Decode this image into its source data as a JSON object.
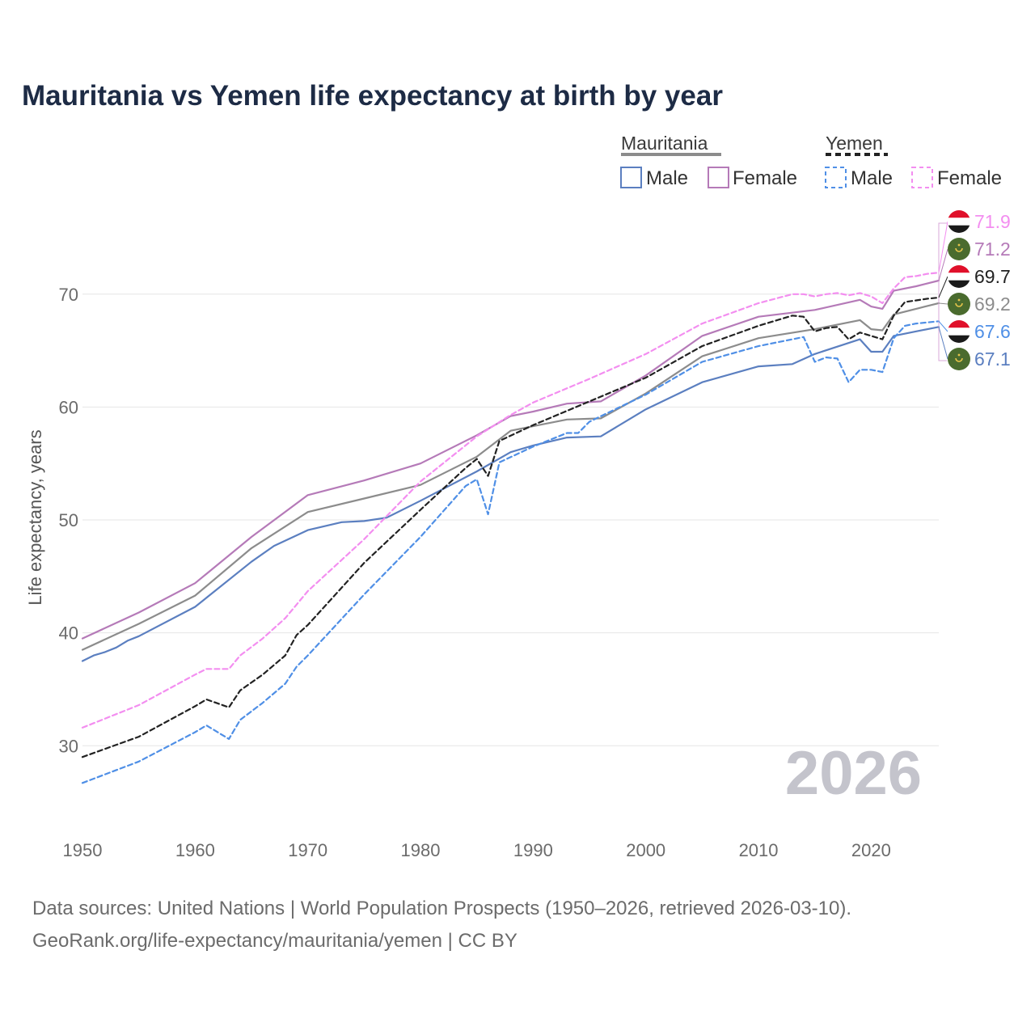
{
  "chart_data": {
    "type": "line",
    "title": "Mauritania vs Yemen life expectancy at birth by year",
    "xlabel": "",
    "ylabel": "Life expectancy, years",
    "xlim": [
      1950,
      2026
    ],
    "ylim": [
      23,
      76
    ],
    "x_ticks": [
      1950,
      1960,
      1970,
      1980,
      1990,
      2000,
      2010,
      2020
    ],
    "y_ticks": [
      30,
      40,
      50,
      60,
      70
    ],
    "current_year": "2026",
    "source_line1": "Data sources: United Nations | World Population Prospects (1950–2026, retrieved 2026-03-10).",
    "source_line2": "GeoRank.org/life-expectancy/mauritania/yemen | CC BY",
    "legend": {
      "groups": [
        {
          "name": "Mauritania",
          "color": "#8c8c8c",
          "dashed": false,
          "items": [
            {
              "label": "Male",
              "color": "#5b7fc0"
            },
            {
              "label": "Female",
              "color": "#b57ab8"
            }
          ]
        },
        {
          "name": "Yemen",
          "color": "#222222",
          "dashed": true,
          "items": [
            {
              "label": "Male",
              "color": "#4f8fe6"
            },
            {
              "label": "Female",
              "color": "#f38ef0"
            }
          ]
        }
      ]
    },
    "series": [
      {
        "name": "Yemen Female",
        "country": "Yemen",
        "color": "#f38ef0",
        "dashed": true,
        "label": "71.9",
        "x": [
          1950,
          1955,
          1960,
          1961,
          1963,
          1964,
          1966,
          1968,
          1970,
          1975,
          1980,
          1985,
          1988,
          1990,
          1995,
          2000,
          2005,
          2010,
          2013,
          2014,
          2015,
          2016,
          2017,
          2018,
          2019,
          2020,
          2021,
          2022,
          2023,
          2024,
          2025,
          2026
        ],
        "y": [
          31.6,
          33.6,
          36.3,
          36.8,
          36.8,
          38.0,
          39.5,
          41.3,
          43.7,
          48.3,
          53.4,
          57.4,
          59.3,
          60.4,
          62.5,
          64.7,
          67.4,
          69.2,
          70.0,
          70.0,
          69.8,
          70.0,
          70.1,
          69.9,
          70.1,
          69.8,
          69.2,
          70.5,
          71.5,
          71.6,
          71.8,
          71.9
        ]
      },
      {
        "name": "Mauritania Female",
        "country": "Mauritania",
        "color": "#b57ab8",
        "dashed": false,
        "label": "71.2",
        "x": [
          1950,
          1955,
          1960,
          1965,
          1970,
          1975,
          1980,
          1985,
          1988,
          1990,
          1993,
          1996,
          2000,
          2005,
          2010,
          2015,
          2019,
          2020,
          2021,
          2022,
          2024,
          2026
        ],
        "y": [
          39.5,
          41.8,
          44.4,
          48.5,
          52.2,
          53.5,
          55.0,
          57.5,
          59.2,
          59.6,
          60.3,
          60.5,
          62.8,
          66.3,
          68.0,
          68.6,
          69.5,
          68.9,
          68.7,
          70.3,
          70.7,
          71.2
        ]
      },
      {
        "name": "Yemen total",
        "country": "Yemen",
        "color": "#222222",
        "dashed": true,
        "label": "69.7",
        "x": [
          1950,
          1955,
          1960,
          1961,
          1963,
          1964,
          1966,
          1968,
          1969,
          1970,
          1975,
          1980,
          1984,
          1985,
          1986,
          1987,
          1990,
          1995,
          2000,
          2005,
          2010,
          2013,
          2014,
          2015,
          2016,
          2017,
          2018,
          2019,
          2021,
          2022,
          2023,
          2025,
          2026
        ],
        "y": [
          29.0,
          30.8,
          33.5,
          34.1,
          33.4,
          34.9,
          36.3,
          38.0,
          39.8,
          40.7,
          46.2,
          50.9,
          54.6,
          55.4,
          53.9,
          57.0,
          58.4,
          60.5,
          62.6,
          65.4,
          67.2,
          68.1,
          68.0,
          66.7,
          67.0,
          67.1,
          66.0,
          66.6,
          66.0,
          68.1,
          69.3,
          69.6,
          69.7
        ]
      },
      {
        "name": "Mauritania total",
        "country": "Mauritania",
        "color": "#8c8c8c",
        "dashed": false,
        "label": "69.2",
        "x": [
          1950,
          1955,
          1960,
          1965,
          1970,
          1975,
          1980,
          1985,
          1988,
          1990,
          1993,
          1996,
          2000,
          2005,
          2010,
          2015,
          2019,
          2020,
          2021,
          2022,
          2024,
          2026
        ],
        "y": [
          38.5,
          40.8,
          43.3,
          47.5,
          50.7,
          51.9,
          53.1,
          55.6,
          57.9,
          58.3,
          58.9,
          59.0,
          61.2,
          64.5,
          66.1,
          66.9,
          67.7,
          66.9,
          66.8,
          68.2,
          68.7,
          69.2
        ]
      },
      {
        "name": "Yemen Male",
        "country": "Yemen",
        "color": "#4f8fe6",
        "dashed": true,
        "label": "67.6",
        "x": [
          1950,
          1955,
          1960,
          1961,
          1963,
          1964,
          1966,
          1968,
          1969,
          1970,
          1975,
          1980,
          1984,
          1985,
          1986,
          1987,
          1990,
          1993,
          1994,
          1995,
          2000,
          2005,
          2010,
          2014,
          2015,
          2016,
          2017,
          2018,
          2019,
          2020,
          2021,
          2022,
          2023,
          2024,
          2026
        ],
        "y": [
          26.7,
          28.6,
          31.2,
          31.8,
          30.6,
          32.3,
          33.8,
          35.5,
          37.0,
          38.0,
          43.4,
          48.5,
          53.0,
          53.6,
          50.5,
          55.1,
          56.5,
          57.7,
          57.7,
          58.7,
          61.1,
          64.0,
          65.4,
          66.2,
          64.0,
          64.4,
          64.3,
          62.2,
          63.3,
          63.3,
          63.1,
          66.1,
          67.2,
          67.4,
          67.6
        ]
      },
      {
        "name": "Mauritania Male",
        "country": "Mauritania",
        "color": "#5b7fc0",
        "dashed": false,
        "label": "67.1",
        "x": [
          1950,
          1951,
          1952,
          1953,
          1954,
          1955,
          1960,
          1965,
          1967,
          1970,
          1973,
          1975,
          1977,
          1980,
          1985,
          1988,
          1990,
          1993,
          1996,
          2000,
          2005,
          2010,
          2013,
          2015,
          2019,
          2020,
          2021,
          2022,
          2024,
          2026
        ],
        "y": [
          37.5,
          38.0,
          38.3,
          38.7,
          39.3,
          39.7,
          42.3,
          46.3,
          47.7,
          49.1,
          49.8,
          49.9,
          50.2,
          51.7,
          54.3,
          56.0,
          56.6,
          57.3,
          57.4,
          59.8,
          62.2,
          63.6,
          63.8,
          64.7,
          66.0,
          64.9,
          64.9,
          66.3,
          66.7,
          67.1
        ]
      }
    ]
  }
}
